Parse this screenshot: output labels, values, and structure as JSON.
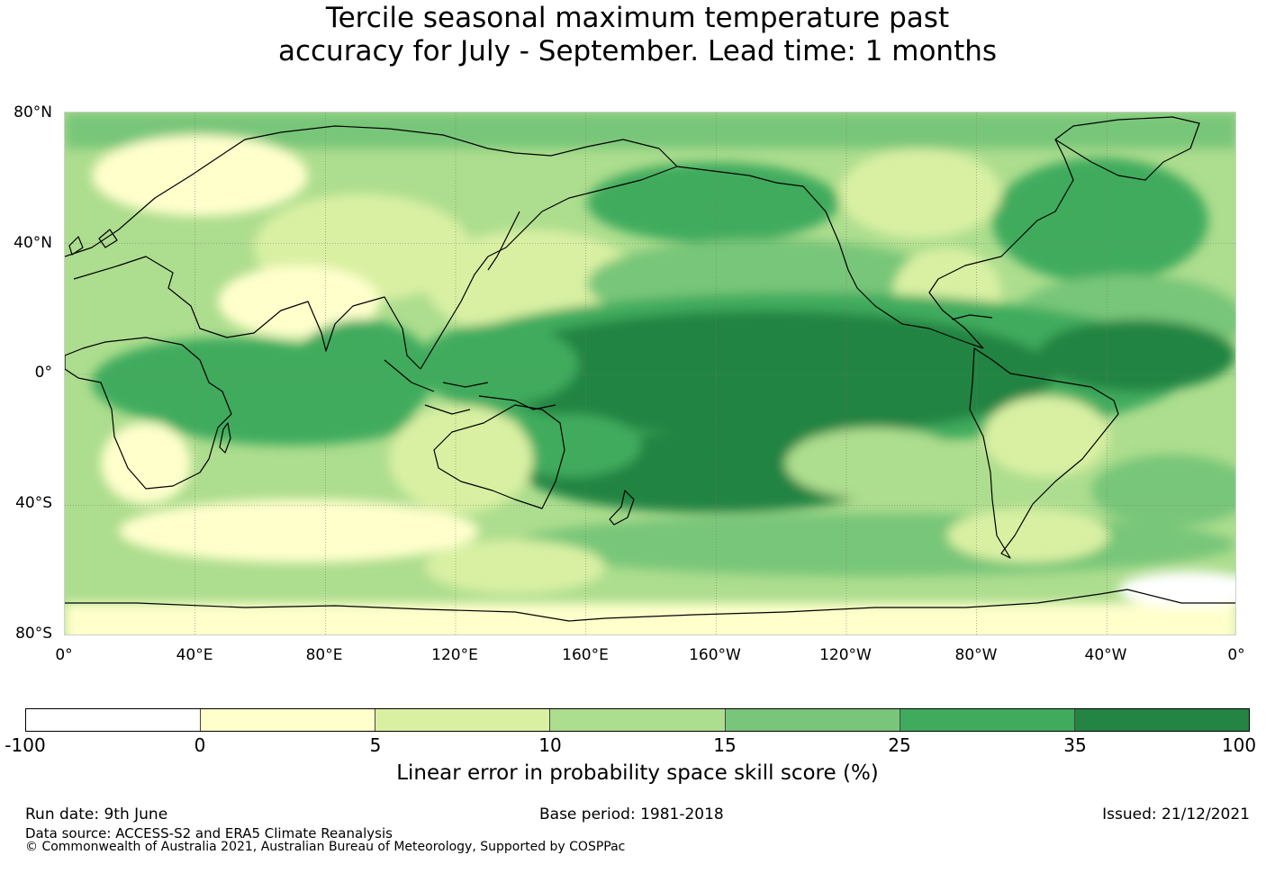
{
  "title": {
    "line1": "Tercile seasonal maximum temperature past",
    "line2": "accuracy for July - September. Lead time: 1 months"
  },
  "map": {
    "lat_labels": [
      "80°N",
      "40°N",
      "0°",
      "40°S",
      "80°S"
    ],
    "lon_labels": [
      "0°",
      "40°E",
      "80°E",
      "120°E",
      "160°E",
      "160°W",
      "120°W",
      "80°W",
      "40°W",
      "0°"
    ]
  },
  "colorbar": {
    "ticks": [
      "-100",
      "0",
      "5",
      "10",
      "15",
      "25",
      "35",
      "100"
    ],
    "colors": [
      "#ffffff",
      "#ffffcc",
      "#d9f0a3",
      "#addd8e",
      "#78c679",
      "#41ab5d",
      "#238443"
    ],
    "label": "Linear error in probability space skill score (%)"
  },
  "footer": {
    "run_date": "Run date: 9th June",
    "base_period": "Base period: 1981-2018",
    "issued": "Issued: 21/12/2021",
    "data_source": "Data source: ACCESS-S2 and ERA5 Climate Reanalysis",
    "copyright": "© Commonwealth of Australia 2021, Australian Bureau of Meteorology, Supported by COSPPac"
  }
}
